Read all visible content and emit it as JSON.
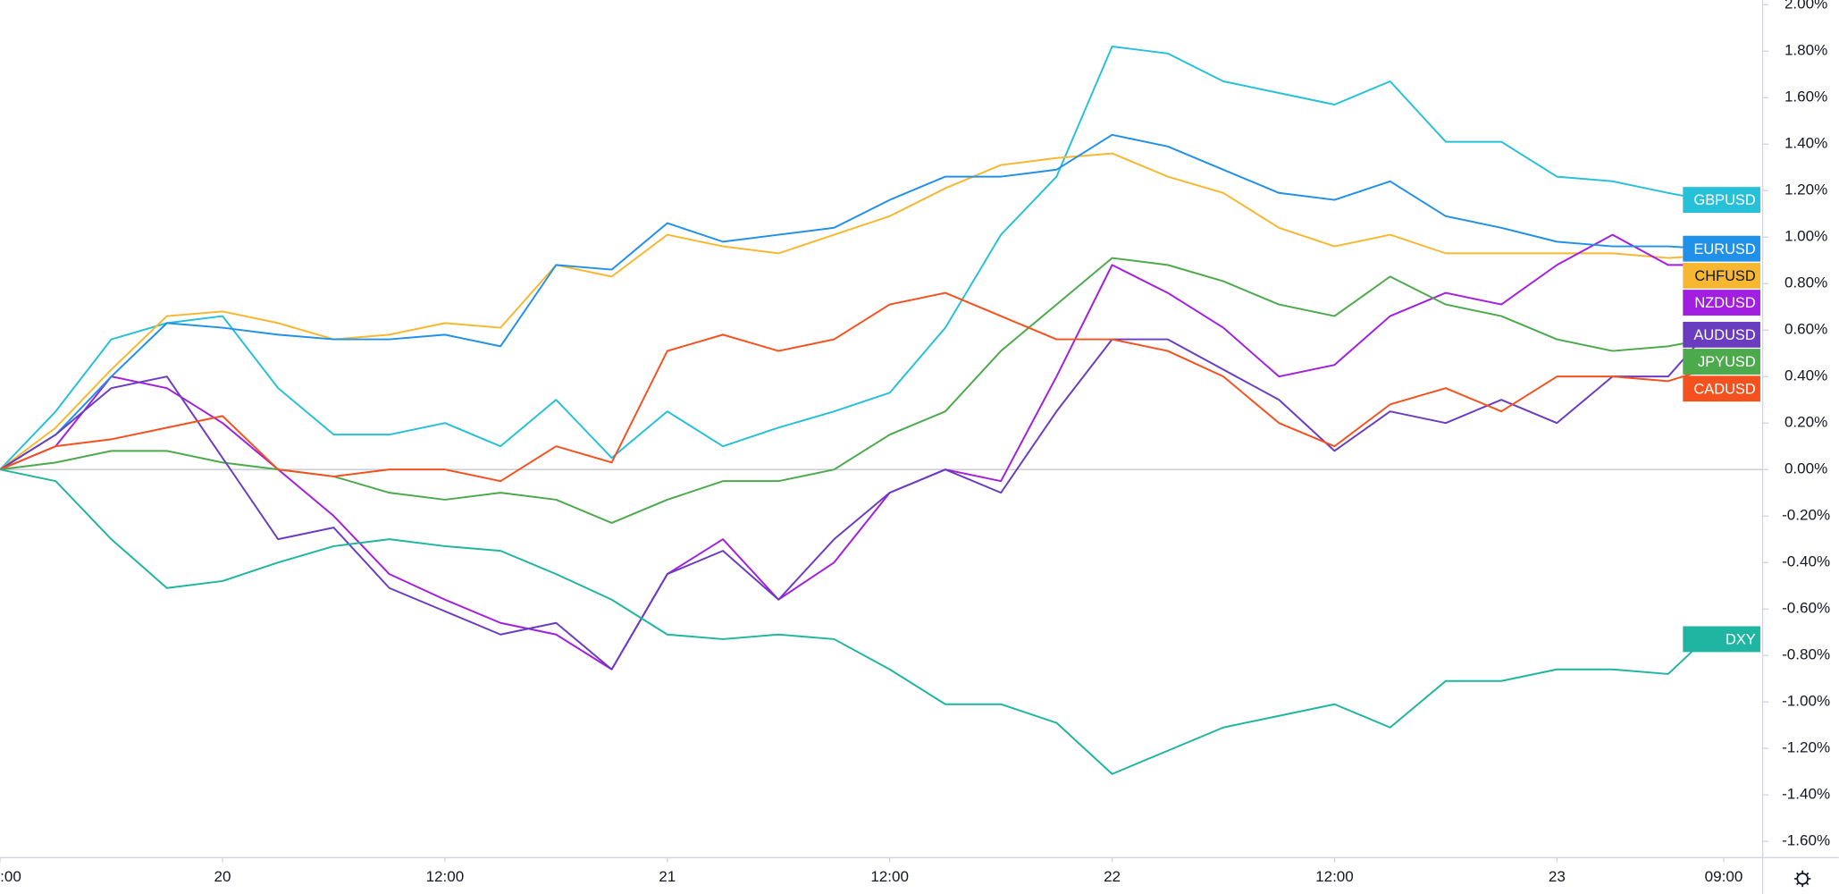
{
  "chart_data": {
    "type": "line",
    "x": [
      -12,
      -9,
      -6,
      -3,
      0,
      3,
      6,
      9,
      12,
      15,
      18,
      21,
      24,
      27,
      30,
      33,
      36,
      39,
      42,
      45,
      48,
      51,
      54,
      57,
      60,
      63,
      66,
      69,
      72,
      75,
      78,
      80
    ],
    "series": [
      {
        "name": "GBPUSD",
        "color": "#26c0d8",
        "values": [
          0,
          0.25,
          0.56,
          0.63,
          0.66,
          0.35,
          0.15,
          0.15,
          0.2,
          0.1,
          0.3,
          0.05,
          0.25,
          0.1,
          0.18,
          0.25,
          0.33,
          0.61,
          1.01,
          1.26,
          1.82,
          1.79,
          1.67,
          1.62,
          1.57,
          1.67,
          1.41,
          1.41,
          1.26,
          1.24,
          1.19,
          1.16
        ]
      },
      {
        "name": "CHFUSD",
        "color": "#f7b731",
        "values": [
          0,
          0.18,
          0.43,
          0.66,
          0.68,
          0.63,
          0.56,
          0.58,
          0.63,
          0.61,
          0.88,
          0.83,
          1.01,
          0.96,
          0.93,
          1.01,
          1.09,
          1.21,
          1.31,
          1.34,
          1.36,
          1.26,
          1.19,
          1.04,
          0.96,
          1.01,
          0.93,
          0.93,
          0.93,
          0.93,
          0.91,
          0.92
        ]
      },
      {
        "name": "NZDUSD",
        "color": "#a21ee0",
        "values": [
          0,
          0.1,
          0.4,
          0.35,
          0.2,
          0,
          -0.2,
          -0.45,
          -0.56,
          -0.66,
          -0.71,
          -0.86,
          -0.45,
          -0.3,
          -0.56,
          -0.4,
          -0.1,
          0,
          -0.05,
          0.4,
          0.88,
          0.76,
          0.61,
          0.4,
          0.45,
          0.66,
          0.76,
          0.71,
          0.88,
          1.01,
          0.88,
          0.88
        ]
      },
      {
        "name": "EURUSD",
        "color": "#2190e8",
        "values": [
          0,
          0.15,
          0.4,
          0.63,
          0.61,
          0.58,
          0.56,
          0.56,
          0.58,
          0.53,
          0.88,
          0.86,
          1.06,
          0.98,
          1.01,
          1.04,
          1.16,
          1.26,
          1.26,
          1.29,
          1.44,
          1.39,
          1.29,
          1.19,
          1.16,
          1.24,
          1.09,
          1.04,
          0.98,
          0.96,
          0.96,
          0.95
        ]
      },
      {
        "name": "JPYUSD",
        "color": "#4caa4c",
        "values": [
          0,
          0.03,
          0.08,
          0.08,
          0.03,
          0,
          -0.03,
          -0.1,
          -0.13,
          -0.1,
          -0.13,
          -0.23,
          -0.13,
          -0.05,
          -0.05,
          0,
          0.15,
          0.25,
          0.51,
          0.71,
          0.91,
          0.88,
          0.81,
          0.71,
          0.66,
          0.83,
          0.71,
          0.66,
          0.56,
          0.51,
          0.53,
          0.56
        ]
      },
      {
        "name": "AUDUSD",
        "color": "#6a3cc0",
        "values": [
          0,
          0.15,
          0.35,
          0.4,
          0.05,
          -0.3,
          -0.25,
          -0.51,
          -0.61,
          -0.71,
          -0.66,
          -0.86,
          -0.45,
          -0.35,
          -0.56,
          -0.3,
          -0.1,
          0,
          -0.1,
          0.25,
          0.56,
          0.56,
          0.43,
          0.3,
          0.08,
          0.25,
          0.2,
          0.3,
          0.2,
          0.4,
          0.4,
          0.58
        ]
      },
      {
        "name": "CADUSD",
        "color": "#f4511e",
        "values": [
          0,
          0.1,
          0.13,
          0.18,
          0.23,
          0,
          -0.03,
          0,
          0,
          -0.05,
          0.1,
          0.03,
          0.51,
          0.58,
          0.51,
          0.56,
          0.71,
          0.76,
          0.66,
          0.56,
          0.56,
          0.51,
          0.4,
          0.2,
          0.1,
          0.28,
          0.35,
          0.25,
          0.4,
          0.4,
          0.38,
          0.43
        ]
      },
      {
        "name": "DXY",
        "color": "#1fb5a0",
        "values": [
          0,
          -0.05,
          -0.3,
          -0.51,
          -0.48,
          -0.4,
          -0.33,
          -0.3,
          -0.33,
          -0.35,
          -0.45,
          -0.56,
          -0.71,
          -0.73,
          -0.71,
          -0.73,
          -0.86,
          -1.01,
          -1.01,
          -1.09,
          -1.31,
          -1.21,
          -1.11,
          -1.06,
          -1.01,
          -1.11,
          -0.91,
          -0.91,
          -0.86,
          -0.86,
          -0.88,
          -0.73
        ]
      }
    ],
    "xlim": [
      -12,
      83.1
    ],
    "xticks": [
      {
        "value": -12,
        "label": ":00"
      },
      {
        "value": 0,
        "label": "20"
      },
      {
        "value": 12,
        "label": "12:00"
      },
      {
        "value": 24,
        "label": "21"
      },
      {
        "value": 36,
        "label": "12:00"
      },
      {
        "value": 48,
        "label": "22"
      },
      {
        "value": 60,
        "label": "12:00"
      },
      {
        "value": 72,
        "label": "23"
      },
      {
        "value": 81,
        "label": "09:00"
      }
    ],
    "ylim": [
      -1.67,
      2.02
    ],
    "yticks": [
      {
        "value": 2,
        "label": "2.00%"
      },
      {
        "value": 1.8,
        "label": "1.80%"
      },
      {
        "value": 1.6,
        "label": "1.60%"
      },
      {
        "value": 1.4,
        "label": "1.40%"
      },
      {
        "value": 1.2,
        "label": "1.20%"
      },
      {
        "value": 1,
        "label": "1.00%"
      },
      {
        "value": 0.8,
        "label": "0.80%"
      },
      {
        "value": 0.6,
        "label": "0.60%"
      },
      {
        "value": 0.4,
        "label": "0.40%"
      },
      {
        "value": 0.2,
        "label": "0.20%"
      },
      {
        "value": 0,
        "label": "0.00%"
      },
      {
        "value": -0.2,
        "label": "-0.20%"
      },
      {
        "value": -0.4,
        "label": "-0.40%"
      },
      {
        "value": -0.6,
        "label": "-0.60%"
      },
      {
        "value": -0.8,
        "label": "-0.80%"
      },
      {
        "value": -1,
        "label": "-1.00%"
      },
      {
        "value": -1.2,
        "label": "-1.20%"
      },
      {
        "value": -1.4,
        "label": "-1.40%"
      },
      {
        "value": -1.6,
        "label": "-1.60%"
      }
    ],
    "zero_line": true
  }
}
